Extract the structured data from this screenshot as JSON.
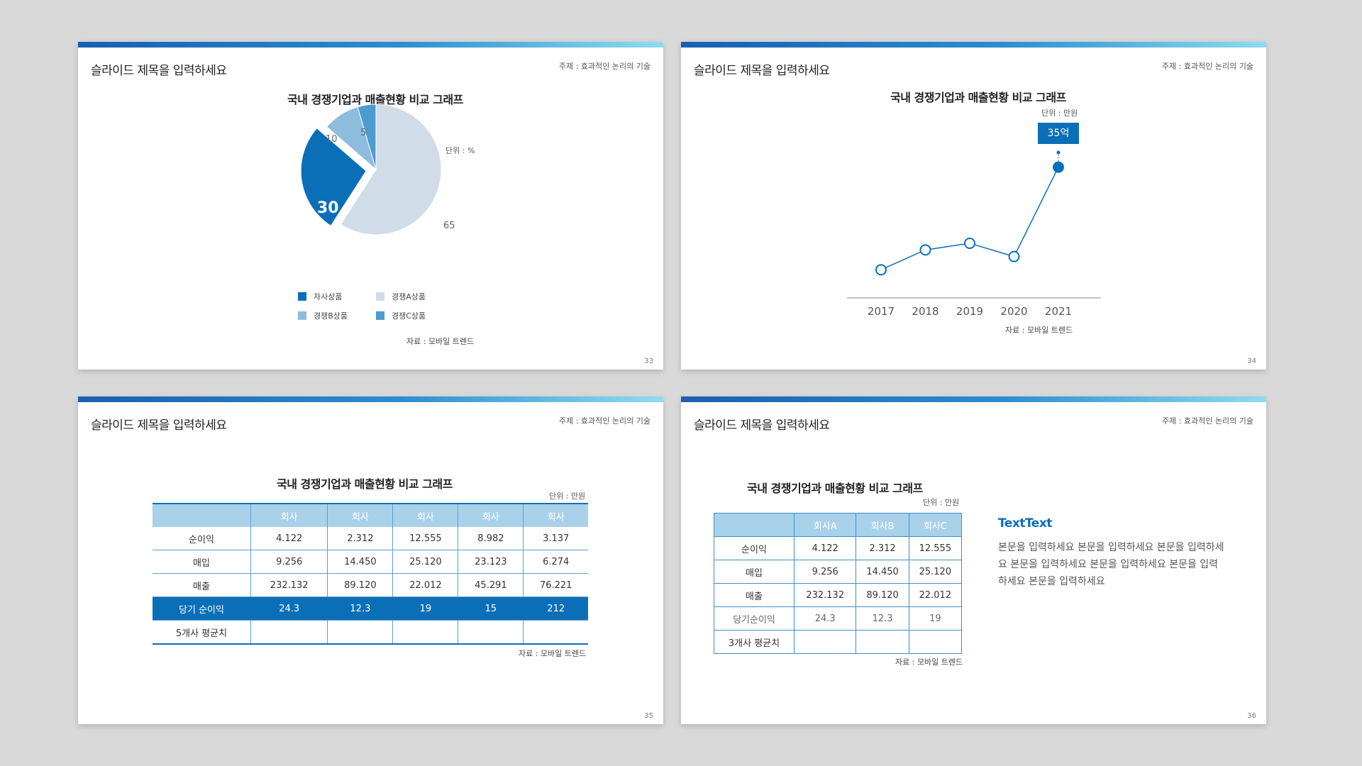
{
  "common": {
    "slide_title": "슬라이드 제목을 입력하세요",
    "topic": "주제 : 효과적인 논리의 기술",
    "chart_title": "국내 경쟁기업과 매출현황 비교 그래프",
    "source": "자료 : 모바일 트렌드"
  },
  "slide33": {
    "page": "33",
    "unit": "단위 : %",
    "labels": {
      "a": "30",
      "b": "10",
      "c": "5",
      "d": "65"
    },
    "legend": [
      "자사상품",
      "경쟁A상품",
      "경쟁B상품",
      "경쟁C상품"
    ]
  },
  "slide34": {
    "page": "34",
    "unit": "단위 : 만원",
    "callout": "35억"
  },
  "slide35": {
    "page": "35",
    "unit": "단위 : 만원",
    "headers": [
      "",
      "회사",
      "회사",
      "회사",
      "회사",
      "회사"
    ],
    "rows": [
      [
        "순이익",
        "4.122",
        "2.312",
        "12.555",
        "8.982",
        "3.137"
      ],
      [
        "매입",
        "9.256",
        "14.450",
        "25.120",
        "23.123",
        "6.274"
      ],
      [
        "매출",
        "232.132",
        "89.120",
        "22.012",
        "45.291",
        "76.221"
      ],
      [
        "당기 순이익",
        "24.3",
        "12.3",
        "19",
        "15",
        "212"
      ],
      [
        "5개사 평균치",
        "",
        "",
        "",
        "",
        ""
      ]
    ]
  },
  "slide36": {
    "page": "36",
    "unit": "단위 : 만원",
    "headers": [
      "",
      "회사A",
      "회사B",
      "회사C"
    ],
    "rows": [
      [
        "순이익",
        "4.122",
        "2.312",
        "12.555"
      ],
      [
        "매입",
        "9.256",
        "14.450",
        "25.120"
      ],
      [
        "매출",
        "232.132",
        "89.120",
        "22.012"
      ],
      [
        "당기순이익",
        "24.3",
        "12.3",
        "19"
      ],
      [
        "3개사 평균치",
        "",
        "",
        ""
      ]
    ],
    "text_title": "TextText",
    "text_body": "본문을 입력하세요 본문을 입력하세요 본문을 입력하세요 본문을 입력하세요 본문을 입력하세요 본문을 입력하세요 본문을 입력하세요"
  },
  "chart_data": [
    {
      "type": "pie",
      "categories": [
        "자사상품",
        "경쟁A상품",
        "경쟁B상품",
        "경쟁C상품"
      ],
      "values": [
        30,
        65,
        10,
        5
      ],
      "colors": [
        "#0b6fb8",
        "#d0dde8",
        "#8dbcdd",
        "#4d9ccf"
      ],
      "unit": "단위 : %",
      "title": "국내 경쟁기업과 매출현황 비교 그래프"
    },
    {
      "type": "line",
      "x": [
        "2017",
        "2018",
        "2019",
        "2020",
        "2021"
      ],
      "values": [
        4,
        10,
        12,
        8,
        35
      ],
      "ylim": [
        0,
        45
      ],
      "annotation": "35억",
      "unit": "단위 : 만원",
      "title": "국내 경쟁기업과 매출현황 비교 그래프"
    }
  ]
}
